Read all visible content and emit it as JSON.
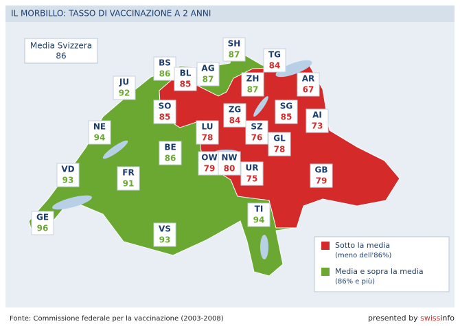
{
  "title": "IL MORBILLO: TASSO DI VACCINAZIONE A 2 ANNI",
  "average": {
    "label": "Media Svizzera",
    "value": 86
  },
  "cantons": [
    {
      "code": "SH",
      "value": 87,
      "color": "#6aa832"
    },
    {
      "code": "BS",
      "value": 86,
      "color": "#6aa832"
    },
    {
      "code": "BL",
      "value": 85,
      "color": "#d42a2a"
    },
    {
      "code": "AG",
      "value": 87,
      "color": "#6aa832"
    },
    {
      "code": "TG",
      "value": 84,
      "color": "#d42a2a"
    },
    {
      "code": "JU",
      "value": 92,
      "color": "#6aa832"
    },
    {
      "code": "ZH",
      "value": 87,
      "color": "#6aa832"
    },
    {
      "code": "AR",
      "value": 67,
      "color": "#d42a2a"
    },
    {
      "code": "SO",
      "value": 85,
      "color": "#d42a2a"
    },
    {
      "code": "ZG",
      "value": 84,
      "color": "#d42a2a"
    },
    {
      "code": "SG",
      "value": 85,
      "color": "#d42a2a"
    },
    {
      "code": "AI",
      "value": 73,
      "color": "#d42a2a"
    },
    {
      "code": "NE",
      "value": 94,
      "color": "#6aa832"
    },
    {
      "code": "LU",
      "value": 78,
      "color": "#d42a2a"
    },
    {
      "code": "SZ",
      "value": 76,
      "color": "#d42a2a"
    },
    {
      "code": "GL",
      "value": 78,
      "color": "#d42a2a"
    },
    {
      "code": "BE",
      "value": 86,
      "color": "#6aa832"
    },
    {
      "code": "VD",
      "value": 93,
      "color": "#6aa832"
    },
    {
      "code": "OW",
      "value": 79,
      "color": "#d42a2a"
    },
    {
      "code": "NW",
      "value": 80,
      "color": "#d42a2a"
    },
    {
      "code": "UR",
      "value": 75,
      "color": "#d42a2a"
    },
    {
      "code": "GB",
      "value": 79,
      "color": "#d42a2a"
    },
    {
      "code": "FR",
      "value": 91,
      "color": "#6aa832"
    },
    {
      "code": "GE",
      "value": 96,
      "color": "#6aa832"
    },
    {
      "code": "TI",
      "value": 94,
      "color": "#6aa832"
    },
    {
      "code": "VS",
      "value": 93,
      "color": "#6aa832"
    }
  ],
  "legend": [
    {
      "color": "#d42a2a",
      "lines": [
        "Sotto la media",
        "(meno dell'86%)"
      ]
    },
    {
      "color": "#6aa832",
      "lines": [
        "Media e sopra la media",
        "(86% e più)"
      ]
    }
  ],
  "source": "Fonte: Commissione federale per la vaccinazione (2003-2008)",
  "credit": {
    "text": "presented by",
    "brand": [
      "swiss",
      "info"
    ]
  }
}
